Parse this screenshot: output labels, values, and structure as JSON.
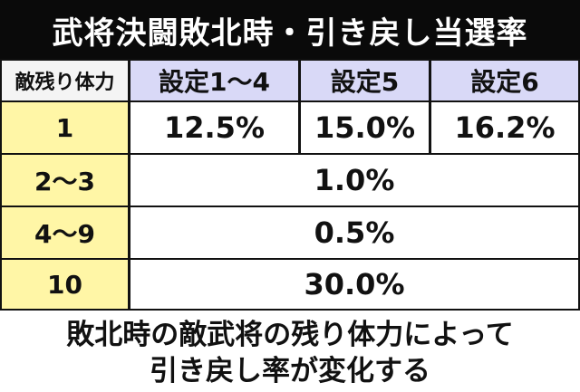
{
  "header": {
    "title": "武将決闘敗北時・引き戻し当選率"
  },
  "table": {
    "columns": [
      "敵残り体力",
      "設定1〜4",
      "設定5",
      "設定6"
    ],
    "rows": [
      [
        "1",
        "12.5%",
        "15.0%",
        "16.2%"
      ],
      [
        "2〜3",
        "1.0%"
      ],
      [
        "4〜9",
        "0.5%"
      ],
      [
        "10",
        "30.0%"
      ]
    ]
  },
  "footer": {
    "lines": [
      "敗北時の敵武将の残り体力によって",
      "引き戻し率が変化する"
    ]
  }
}
